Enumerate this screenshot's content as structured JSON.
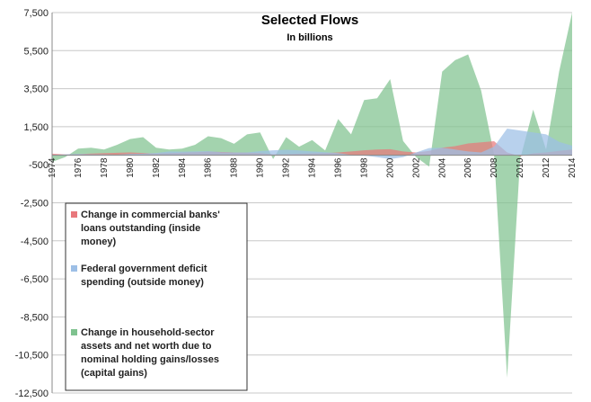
{
  "chart_data": {
    "type": "area",
    "title": "Selected Flows",
    "subtitle": "In billions",
    "xlabel": "",
    "ylabel": "",
    "xlim": [
      1974,
      2014
    ],
    "ylim": [
      -12500,
      7500
    ],
    "y_ticks": [
      7500,
      5500,
      3500,
      1500,
      -500,
      -2500,
      -4500,
      -6500,
      -8500,
      -10500,
      -12500
    ],
    "y_tick_labels": [
      "7,500",
      "5,500",
      "3,500",
      "1,500",
      "-500",
      "-2,500",
      "-4,500",
      "-6,500",
      "-8,500",
      "-10,500",
      "-12,500"
    ],
    "x_tick_labels": [
      "1974",
      "1976",
      "1978",
      "1980",
      "1982",
      "1984",
      "1986",
      "1988",
      "1990",
      "1992",
      "1994",
      "1996",
      "1998",
      "2000",
      "2002",
      "2004",
      "2006",
      "2008",
      "2010",
      "2012",
      "2014"
    ],
    "grid": true,
    "legend_position": "bottom-left",
    "x": [
      1974,
      1975,
      1976,
      1977,
      1978,
      1979,
      1980,
      1981,
      1982,
      1983,
      1984,
      1985,
      1986,
      1987,
      1988,
      1989,
      1990,
      1991,
      1992,
      1993,
      1994,
      1995,
      1996,
      1997,
      1998,
      1999,
      2000,
      2001,
      2002,
      2003,
      2004,
      2005,
      2006,
      2007,
      2008,
      2009,
      2010,
      2011,
      2012,
      2013,
      2014
    ],
    "series": [
      {
        "name": "Change in household-sector assets and net worth due to nominal holding gains/losses (capital gains)",
        "color": "#7fc28f",
        "values": [
          -350,
          -100,
          350,
          400,
          300,
          550,
          850,
          950,
          400,
          300,
          350,
          550,
          1000,
          900,
          600,
          1100,
          1200,
          -200,
          950,
          450,
          800,
          250,
          1900,
          1100,
          2900,
          3000,
          4000,
          750,
          -100,
          -600,
          4400,
          5000,
          5300,
          3400,
          50,
          -11700,
          -200,
          2400,
          300,
          4400,
          7500
        ]
      },
      {
        "name": "Change in commercial banks' loans outstanding (inside money)",
        "color": "#e8787c",
        "values": [
          80,
          50,
          60,
          90,
          110,
          130,
          150,
          120,
          90,
          110,
          140,
          160,
          190,
          170,
          150,
          140,
          120,
          50,
          60,
          80,
          100,
          110,
          150,
          200,
          260,
          300,
          320,
          200,
          150,
          230,
          400,
          480,
          620,
          680,
          740,
          150,
          -50,
          100,
          150,
          230,
          300
        ]
      },
      {
        "name": "Federal government deficit spending (outside money)",
        "color": "#9dbfe6",
        "values": [
          10,
          50,
          70,
          50,
          40,
          30,
          70,
          80,
          120,
          200,
          190,
          200,
          220,
          160,
          150,
          150,
          220,
          260,
          290,
          250,
          200,
          160,
          110,
          20,
          -20,
          -100,
          -200,
          -100,
          150,
          380,
          400,
          300,
          200,
          150,
          450,
          1400,
          1300,
          1200,
          1100,
          700,
          500
        ]
      }
    ],
    "legend": [
      {
        "label": "Change in commercial banks' loans outstanding (inside money)",
        "color": "#e8787c",
        "lines": [
          "Change in commercial banks'",
          "loans outstanding (inside",
          "money)"
        ]
      },
      {
        "label": "Federal government deficit spending (outside money)",
        "color": "#9dbfe6",
        "lines": [
          "Federal government deficit",
          "spending (outside money)"
        ]
      },
      {
        "label": "Change in household-sector assets and net worth due to nominal holding gains/losses (capital gains)",
        "color": "#7fc28f",
        "lines": [
          "Change in household-sector",
          "assets and net worth due to",
          "nominal holding gains/losses",
          "(capital gains)"
        ]
      }
    ]
  }
}
